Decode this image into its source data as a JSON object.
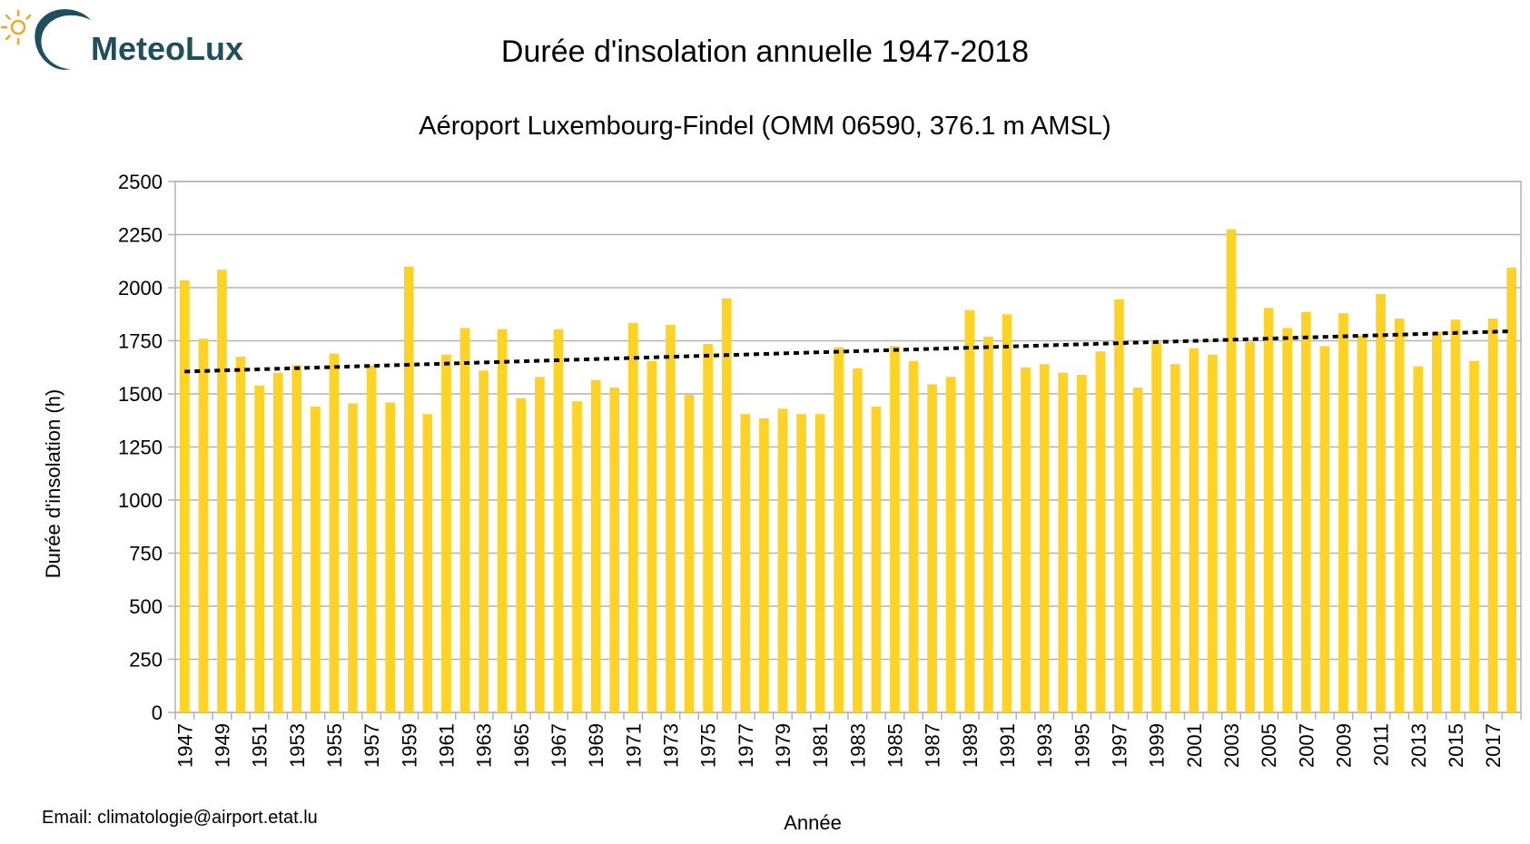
{
  "logo": {
    "text": "MeteoLux",
    "text_color": "#1f4e5c",
    "sun_color": "#f5a623",
    "arc_color": "#1f4e5c"
  },
  "header": {
    "title": "Durée d'insolation annuelle 1947-2018",
    "subtitle": "Aéroport Luxembourg-Findel (OMM 06590, 376.1 m AMSL)"
  },
  "footer": {
    "email": "Email: climatologie@airport.etat.lu"
  },
  "chart_data": {
    "type": "bar",
    "title": "Durée d'insolation annuelle 1947-2018",
    "subtitle": "Aéroport Luxembourg-Findel (OMM 06590, 376.1 m AMSL)",
    "xlabel": "Année",
    "ylabel": "Durée d'insolation (h)",
    "ylim": [
      0,
      2500
    ],
    "yticks": [
      0,
      250,
      500,
      750,
      1000,
      1250,
      1500,
      1750,
      2000,
      2250,
      2500
    ],
    "grid": true,
    "bar_color": "#ffd326",
    "categories": [
      "1947",
      "1948",
      "1949",
      "1950",
      "1951",
      "1952",
      "1953",
      "1954",
      "1955",
      "1956",
      "1957",
      "1958",
      "1959",
      "1960",
      "1961",
      "1962",
      "1963",
      "1964",
      "1965",
      "1966",
      "1967",
      "1968",
      "1969",
      "1970",
      "1971",
      "1972",
      "1973",
      "1974",
      "1975",
      "1976",
      "1977",
      "1978",
      "1979",
      "1980",
      "1981",
      "1982",
      "1983",
      "1984",
      "1985",
      "1986",
      "1987",
      "1988",
      "1989",
      "1990",
      "1991",
      "1992",
      "1993",
      "1994",
      "1995",
      "1996",
      "1997",
      "1998",
      "1999",
      "2000",
      "2001",
      "2002",
      "2003",
      "2004",
      "2005",
      "2006",
      "2007",
      "2008",
      "2009",
      "2010",
      "2011",
      "2012",
      "2013",
      "2014",
      "2015",
      "2016",
      "2017",
      "2018"
    ],
    "tick_labels": [
      "1947",
      "1949",
      "1951",
      "1953",
      "1955",
      "1957",
      "1959",
      "1961",
      "1963",
      "1965",
      "1967",
      "1969",
      "1971",
      "1973",
      "1975",
      "1977",
      "1979",
      "1981",
      "1983",
      "1985",
      "1987",
      "1989",
      "1991",
      "1993",
      "1995",
      "1997",
      "1999",
      "2001",
      "2003",
      "2005",
      "2007",
      "2009",
      "2011",
      "2013",
      "2015",
      "2017"
    ],
    "values": [
      2035,
      1760,
      2085,
      1675,
      1540,
      1600,
      1635,
      1440,
      1690,
      1455,
      1635,
      1460,
      2100,
      1405,
      1685,
      1810,
      1610,
      1805,
      1480,
      1580,
      1805,
      1465,
      1565,
      1530,
      1835,
      1655,
      1825,
      1495,
      1735,
      1950,
      1405,
      1385,
      1430,
      1405,
      1405,
      1720,
      1620,
      1440,
      1725,
      1655,
      1545,
      1580,
      1895,
      1770,
      1875,
      1625,
      1640,
      1600,
      1590,
      1700,
      1945,
      1530,
      1745,
      1640,
      1715,
      1685,
      2275,
      1745,
      1905,
      1810,
      1885,
      1725,
      1880,
      1775,
      1970,
      1855,
      1630,
      1790,
      1850,
      1655,
      1855,
      2095
    ],
    "trend": {
      "style": "dotted",
      "color": "#000000",
      "start": [
        1947,
        1605
      ],
      "end": [
        2018,
        1795
      ]
    }
  }
}
